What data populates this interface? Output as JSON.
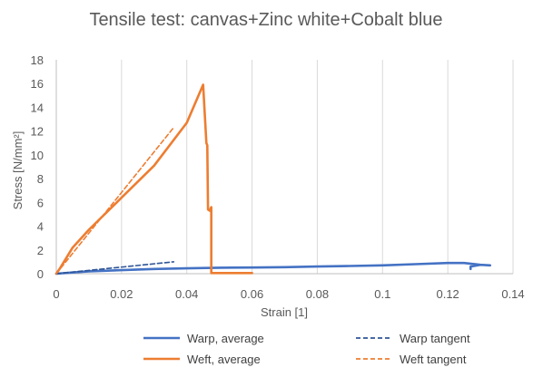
{
  "chart_data": {
    "type": "line",
    "title": "Tensile test: canvas+Zinc white+Cobalt blue",
    "xlabel": "Strain [1]",
    "ylabel": "Stress [N/mm²]",
    "xlim": [
      0,
      0.14
    ],
    "ylim": [
      0,
      18
    ],
    "xticks": [
      0,
      0.02,
      0.04,
      0.06,
      0.08,
      0.1,
      0.12,
      0.14
    ],
    "xtick_labels": [
      "0",
      "0.02",
      "0.04",
      "0.06",
      "0.08",
      "0.1",
      "0.12",
      "0.14"
    ],
    "yticks": [
      0,
      2,
      4,
      6,
      8,
      10,
      12,
      14,
      16,
      18
    ],
    "ytick_labels": [
      "0",
      "2",
      "4",
      "6",
      "8",
      "10",
      "12",
      "14",
      "16",
      "18"
    ],
    "grid": {
      "vertical": true,
      "horizontal": false
    },
    "legend_position": "bottom",
    "series": [
      {
        "name": "Warp, average",
        "color": "#4472C4",
        "style": "solid",
        "x": [
          0,
          0.005,
          0.01,
          0.02,
          0.03,
          0.04,
          0.05,
          0.06,
          0.07,
          0.08,
          0.09,
          0.1,
          0.11,
          0.12,
          0.125,
          0.13,
          0.133,
          0.13,
          0.127,
          0.127
        ],
        "y": [
          0,
          0.1,
          0.2,
          0.3,
          0.4,
          0.45,
          0.5,
          0.52,
          0.55,
          0.6,
          0.65,
          0.7,
          0.8,
          0.9,
          0.9,
          0.75,
          0.7,
          0.75,
          0.6,
          0.4
        ]
      },
      {
        "name": "Weft, average",
        "color": "#ED7D31",
        "style": "solid",
        "x": [
          0,
          0.001,
          0.005,
          0.01,
          0.02,
          0.03,
          0.04,
          0.045,
          0.046,
          0.0463,
          0.0465,
          0.047,
          0.0475,
          0.0475,
          0.05,
          0.06
        ],
        "y": [
          0,
          0.4,
          2.2,
          3.7,
          6.4,
          9.1,
          12.7,
          15.9,
          11.0,
          10.8,
          5.4,
          5.3,
          5.6,
          0.05,
          0.05,
          0.05
        ]
      },
      {
        "name": "Warp tangent",
        "color": "#2F5597",
        "style": "dashed",
        "x": [
          0,
          0.036
        ],
        "y": [
          0,
          1.0
        ]
      },
      {
        "name": "Weft tangent",
        "color": "#ED7D31",
        "style": "dashed",
        "x": [
          0,
          0.036
        ],
        "y": [
          0,
          12.3
        ]
      }
    ]
  }
}
